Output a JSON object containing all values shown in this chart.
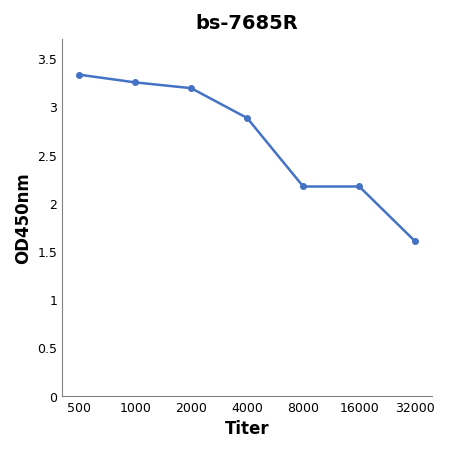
{
  "title": "bs-7685R",
  "xlabel": "Titer",
  "ylabel": "OD450nm",
  "x_positions": [
    0,
    1,
    2,
    3,
    4,
    5,
    6
  ],
  "x_labels": [
    "500",
    "1000",
    "2000",
    "4000",
    "8000",
    "16000",
    "32000"
  ],
  "y_values": [
    3.33,
    3.25,
    3.19,
    2.88,
    2.17,
    2.17,
    1.6
  ],
  "line_color": "#4472C4",
  "marker": "o",
  "marker_size": 4,
  "line_width": 1.8,
  "ylim": [
    0,
    3.7
  ],
  "yticks": [
    0,
    0.5,
    1.0,
    1.5,
    2.0,
    2.5,
    3.0,
    3.5
  ],
  "ytick_labels": [
    "0",
    "0.5",
    "1",
    "1.5",
    "2",
    "2.5",
    "3",
    "3.5"
  ],
  "title_fontsize": 14,
  "axis_label_fontsize": 12,
  "tick_fontsize": 9,
  "background_color": "#ffffff",
  "border_color": "#d0d0d0"
}
